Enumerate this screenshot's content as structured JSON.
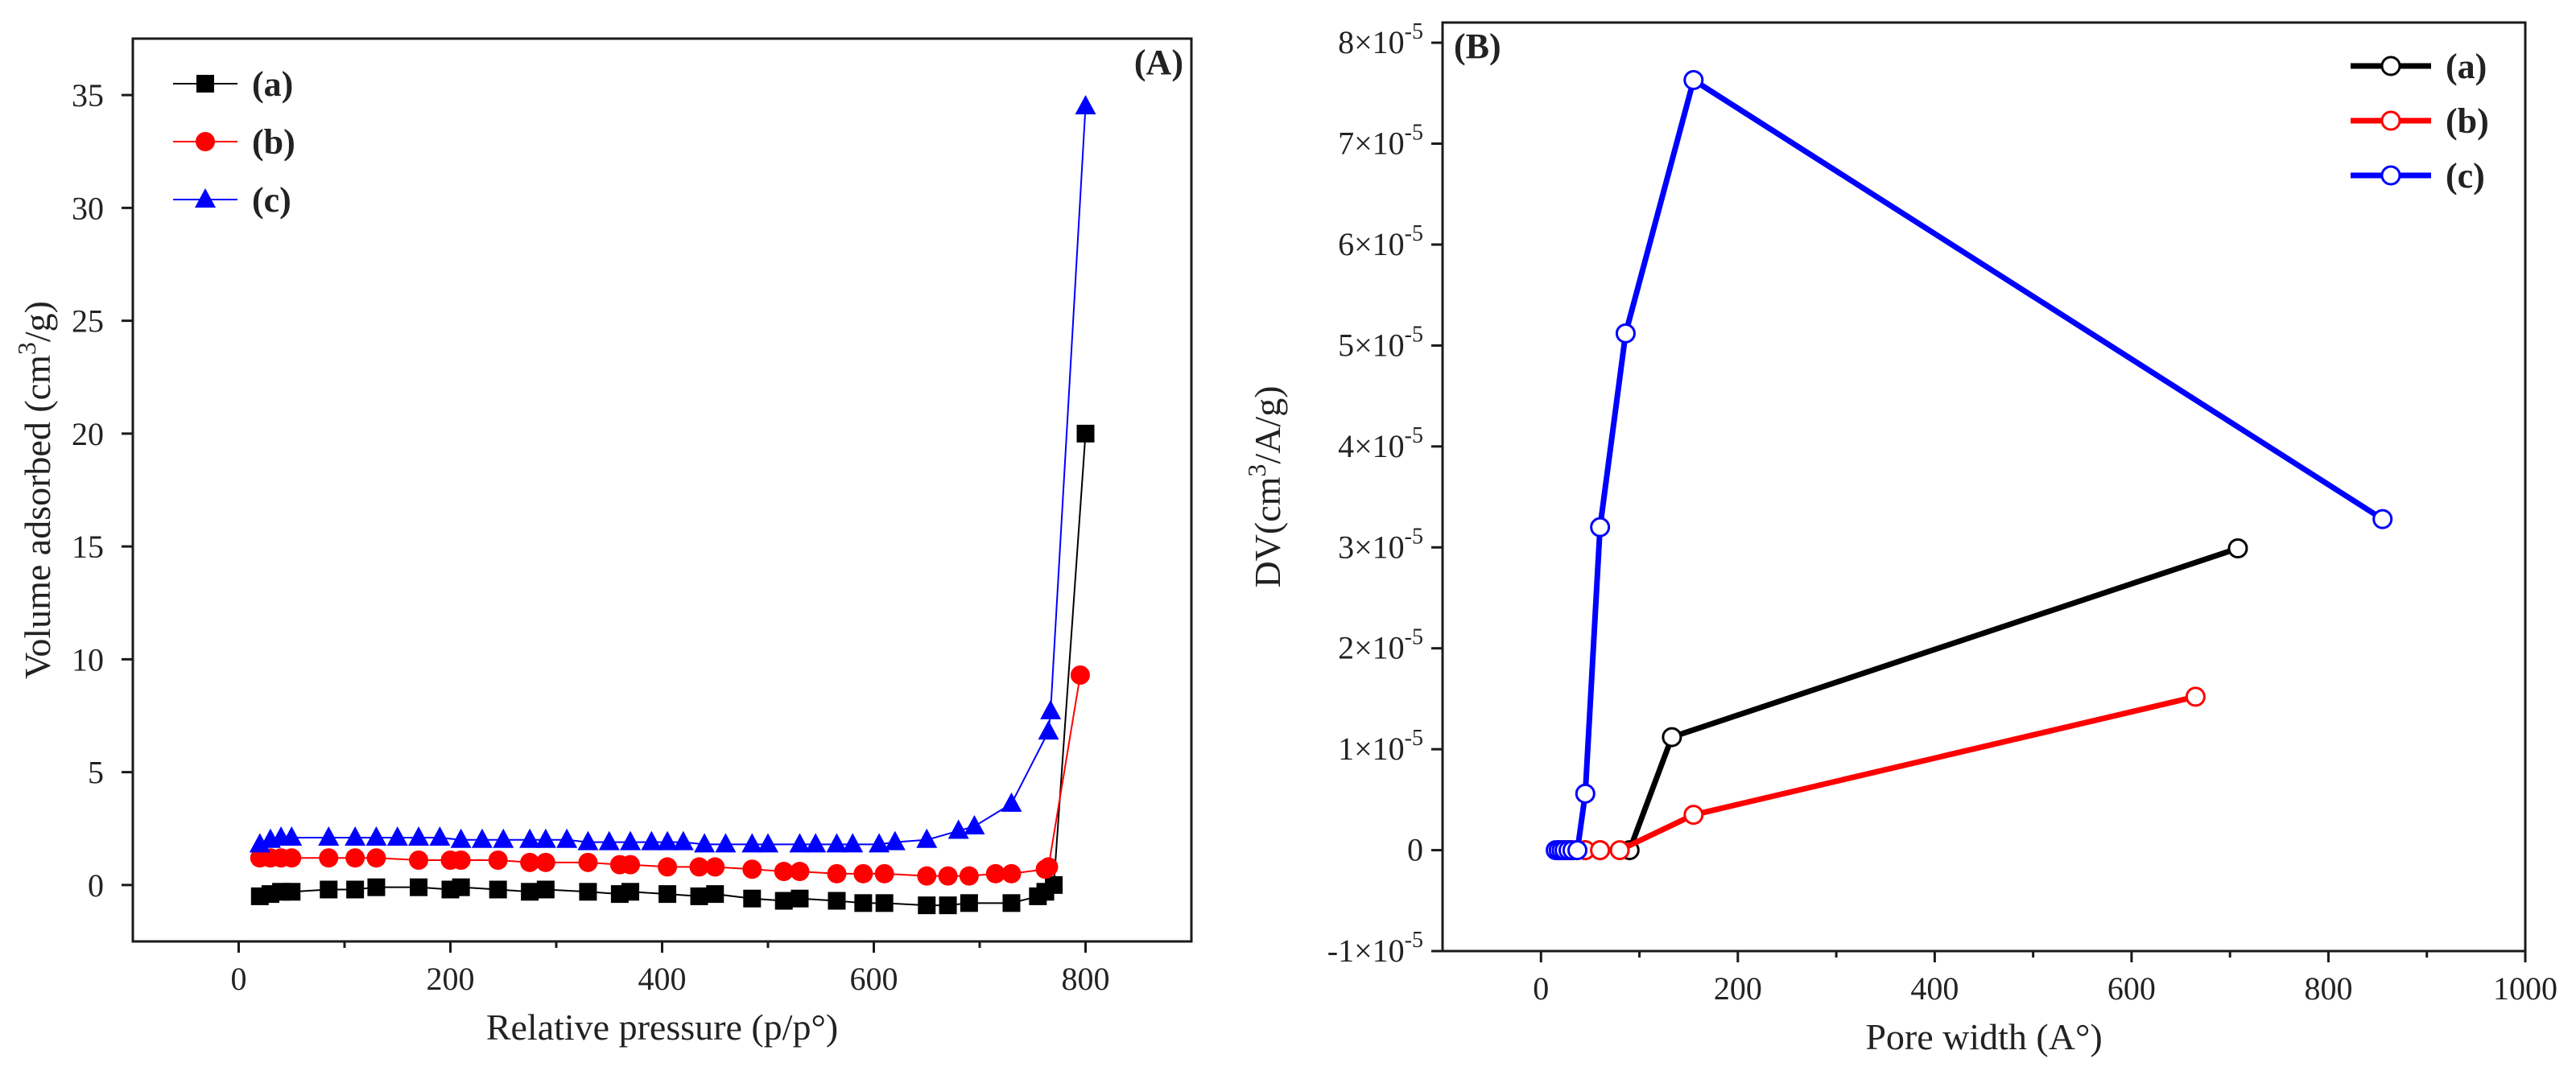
{
  "chart_data": [
    {
      "type": "line",
      "panel_label": "(A)",
      "title": "",
      "xlabel": "Relative pressure (p/p°)",
      "ylabel_main": "Volume adsorbed (cm",
      "ylabel_sup": "3",
      "ylabel_tail": "/g)",
      "xlim": [
        -100,
        900
      ],
      "ylim": [
        -2.5,
        37.5
      ],
      "xticks": [
        0,
        200,
        400,
        600,
        800
      ],
      "yticks": [
        0,
        5,
        10,
        15,
        20,
        25,
        30,
        35
      ],
      "legend_position": "top-left",
      "series": [
        {
          "name": "(a)",
          "color": "#000000",
          "marker": "square",
          "x": [
            20,
            30,
            40,
            50,
            85,
            110,
            130,
            170,
            200,
            210,
            245,
            275,
            290,
            330,
            360,
            370,
            405,
            435,
            450,
            485,
            515,
            530,
            565,
            590,
            610,
            650,
            670,
            690,
            730,
            755,
            762,
            770,
            800
          ],
          "y": [
            -0.5,
            -0.4,
            -0.3,
            -0.3,
            -0.2,
            -0.2,
            -0.1,
            -0.1,
            -0.2,
            -0.1,
            -0.2,
            -0.3,
            -0.2,
            -0.3,
            -0.4,
            -0.3,
            -0.4,
            -0.5,
            -0.4,
            -0.6,
            -0.7,
            -0.6,
            -0.7,
            -0.8,
            -0.8,
            -0.9,
            -0.9,
            -0.8,
            -0.8,
            -0.5,
            -0.3,
            0.0,
            20.0
          ]
        },
        {
          "name": "(b)",
          "color": "#ff0000",
          "marker": "circle",
          "x": [
            20,
            30,
            40,
            50,
            85,
            110,
            130,
            170,
            200,
            210,
            245,
            275,
            290,
            330,
            360,
            370,
            405,
            435,
            450,
            485,
            515,
            530,
            565,
            590,
            610,
            650,
            670,
            690,
            715,
            730,
            762,
            765,
            795
          ],
          "y": [
            1.2,
            1.2,
            1.2,
            1.2,
            1.2,
            1.2,
            1.2,
            1.1,
            1.1,
            1.1,
            1.1,
            1.0,
            1.0,
            1.0,
            0.9,
            0.9,
            0.8,
            0.8,
            0.8,
            0.7,
            0.6,
            0.6,
            0.5,
            0.5,
            0.5,
            0.4,
            0.4,
            0.4,
            0.5,
            0.5,
            0.7,
            0.8,
            9.3
          ]
        },
        {
          "name": "(c)",
          "color": "#0000ff",
          "marker": "triangle",
          "x": [
            20,
            30,
            40,
            50,
            85,
            110,
            130,
            150,
            170,
            190,
            210,
            230,
            250,
            275,
            290,
            310,
            330,
            350,
            370,
            390,
            405,
            420,
            440,
            460,
            485,
            500,
            530,
            545,
            565,
            580,
            605,
            620,
            650,
            680,
            695,
            730,
            765,
            767,
            800
          ],
          "y": [
            1.8,
            2.0,
            2.1,
            2.1,
            2.1,
            2.1,
            2.1,
            2.1,
            2.1,
            2.1,
            2.0,
            2.0,
            2.0,
            2.0,
            2.0,
            2.0,
            1.9,
            1.9,
            1.9,
            1.9,
            1.9,
            1.9,
            1.8,
            1.8,
            1.8,
            1.8,
            1.8,
            1.8,
            1.8,
            1.8,
            1.8,
            1.9,
            2.0,
            2.4,
            2.6,
            3.6,
            6.8,
            7.7,
            34.5
          ]
        }
      ]
    },
    {
      "type": "line",
      "panel_label": "(B)",
      "title": "",
      "xlabel": "Pore width (A°)",
      "ylabel_main": "DV(cm",
      "ylabel_sup": "3",
      "ylabel_tail": "/A/g)",
      "xlim": [
        -100,
        1000
      ],
      "ylim": [
        -1e-05,
        8.2e-05
      ],
      "xticks": [
        0,
        200,
        400,
        600,
        800,
        1000
      ],
      "yticks": [
        -1e-05,
        0,
        1e-05,
        2e-05,
        3e-05,
        4e-05,
        5e-05,
        6e-05,
        7e-05,
        8e-05
      ],
      "ytick_labels": [
        {
          "mantissa": "-1×10",
          "exp": "-5"
        },
        {
          "mantissa": "0",
          "exp": ""
        },
        {
          "mantissa": "1×10",
          "exp": "-5"
        },
        {
          "mantissa": "2×10",
          "exp": "-5"
        },
        {
          "mantissa": "3×10",
          "exp": "-5"
        },
        {
          "mantissa": "4×10",
          "exp": "-5"
        },
        {
          "mantissa": "5×10",
          "exp": "-5"
        },
        {
          "mantissa": "6×10",
          "exp": "-5"
        },
        {
          "mantissa": "7×10",
          "exp": "-5"
        },
        {
          "mantissa": "8×10",
          "exp": "-5"
        }
      ],
      "legend_position": "top-right",
      "series": [
        {
          "name": "(a)",
          "color": "#000000",
          "marker": "open-circle",
          "x": [
            18,
            22,
            26,
            30,
            36,
            45,
            60,
            90,
            133,
            708
          ],
          "y": [
            0,
            0,
            0,
            0,
            0,
            0,
            0,
            0,
            1.12e-05,
            2.99e-05
          ]
        },
        {
          "name": "(b)",
          "color": "#ff0000",
          "marker": "open-circle",
          "x": [
            18,
            22,
            26,
            30,
            36,
            45,
            60,
            80,
            155,
            665
          ],
          "y": [
            0,
            0,
            0,
            0,
            0,
            0,
            0,
            0,
            3.5e-06,
            1.52e-05
          ]
        },
        {
          "name": "(c)",
          "color": "#0000ff",
          "marker": "open-circle",
          "x": [
            15,
            18,
            21,
            24,
            28,
            32,
            37,
            45,
            60,
            86,
            155,
            855
          ],
          "y": [
            0,
            0,
            0,
            0,
            0,
            0,
            0,
            5.6e-06,
            3.2e-05,
            5.12e-05,
            7.63e-05,
            3.28e-05
          ]
        }
      ]
    }
  ]
}
